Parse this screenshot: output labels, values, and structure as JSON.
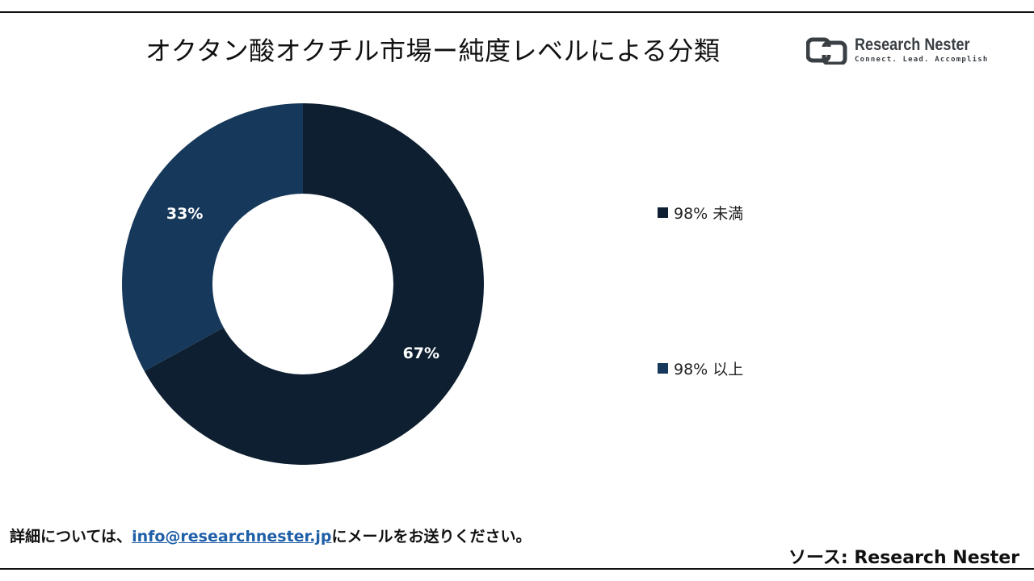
{
  "header": {
    "title": "オクタン酸オクチル市場ー純度レベルによる分類"
  },
  "logo": {
    "name_bold": "Research",
    "name_rest": " Nester",
    "tagline": "Connect. Lead. Accomplish",
    "icon": "research-nester-logo-icon"
  },
  "chart_data": {
    "type": "pie",
    "style": "donut",
    "categories": [
      "98% 未満",
      "98% 以上"
    ],
    "values": [
      67,
      33
    ],
    "data_labels": [
      "67%",
      "33%"
    ],
    "colors": [
      "#0d1f30",
      "#16385a"
    ],
    "legend_position": "right",
    "title": ""
  },
  "footer": {
    "note_prefix": "詳細については、",
    "email": "info@researchnester.jp",
    "note_suffix": "にメールをお送りください。",
    "source": "ソース: Research Nester"
  }
}
